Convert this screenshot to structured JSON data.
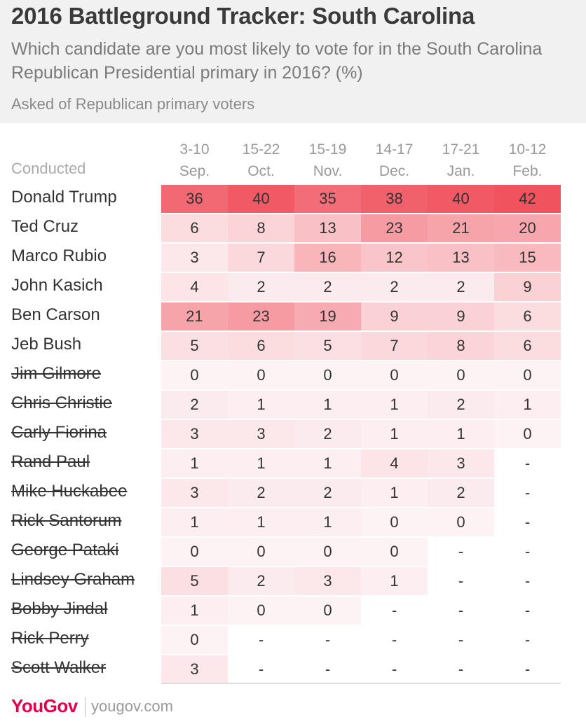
{
  "header": {
    "title": "2016 Battleground Tracker: South Carolina",
    "subtitle": "Which candidate are you most likely to vote for in the South Carolina Republican Presidential primary in 2016? (%)",
    "note": "Asked of Republican primary voters"
  },
  "table": {
    "conducted_label": "Conducted",
    "columns": [
      {
        "dates": "3-10",
        "month": "Sep."
      },
      {
        "dates": "15-22",
        "month": "Oct."
      },
      {
        "dates": "15-19",
        "month": "Nov."
      },
      {
        "dates": "14-17",
        "month": "Dec."
      },
      {
        "dates": "17-21",
        "month": "Jan."
      },
      {
        "dates": "10-12",
        "month": "Feb."
      }
    ],
    "rows": [
      {
        "name": "Donald Trump",
        "dropped": false,
        "values": [
          36,
          40,
          35,
          38,
          40,
          42
        ]
      },
      {
        "name": "Ted Cruz",
        "dropped": false,
        "values": [
          6,
          8,
          13,
          23,
          21,
          20
        ]
      },
      {
        "name": "Marco Rubio",
        "dropped": false,
        "values": [
          3,
          7,
          16,
          12,
          13,
          15
        ]
      },
      {
        "name": "John Kasich",
        "dropped": false,
        "values": [
          4,
          2,
          2,
          2,
          2,
          9
        ]
      },
      {
        "name": "Ben Carson",
        "dropped": false,
        "values": [
          21,
          23,
          19,
          9,
          9,
          6
        ]
      },
      {
        "name": "Jeb Bush",
        "dropped": false,
        "values": [
          5,
          6,
          5,
          7,
          8,
          6
        ]
      },
      {
        "name": "Jim Gilmore",
        "dropped": true,
        "values": [
          0,
          0,
          0,
          0,
          0,
          0
        ]
      },
      {
        "name": "Chris Christie",
        "dropped": true,
        "values": [
          2,
          1,
          1,
          1,
          2,
          1
        ]
      },
      {
        "name": "Carly Fiorina",
        "dropped": true,
        "values": [
          3,
          3,
          2,
          1,
          1,
          0
        ]
      },
      {
        "name": "Rand Paul",
        "dropped": true,
        "values": [
          1,
          1,
          1,
          4,
          3,
          null
        ]
      },
      {
        "name": "Mike Huckabee",
        "dropped": true,
        "values": [
          3,
          2,
          2,
          1,
          2,
          null
        ]
      },
      {
        "name": "Rick Santorum",
        "dropped": true,
        "values": [
          1,
          1,
          1,
          0,
          0,
          null
        ]
      },
      {
        "name": "George Pataki",
        "dropped": true,
        "values": [
          0,
          0,
          0,
          0,
          null,
          null
        ]
      },
      {
        "name": "Lindsey Graham",
        "dropped": true,
        "values": [
          5,
          2,
          3,
          1,
          null,
          null
        ]
      },
      {
        "name": "Bobby Jindal",
        "dropped": true,
        "values": [
          1,
          0,
          0,
          null,
          null,
          null
        ]
      },
      {
        "name": "Rick Perry",
        "dropped": true,
        "values": [
          0,
          null,
          null,
          null,
          null,
          null
        ]
      },
      {
        "name": "Scott Walker",
        "dropped": true,
        "values": [
          3,
          null,
          null,
          null,
          null,
          null
        ]
      }
    ],
    "missing_text": "-"
  },
  "chart_data": {
    "type": "heatmap",
    "title": "2016 Battleground Tracker: South Carolina",
    "categories": [
      "3-10 Sep.",
      "15-22 Oct.",
      "15-19 Nov.",
      "14-17 Dec.",
      "17-21 Jan.",
      "10-12 Feb."
    ],
    "series": [
      {
        "name": "Donald Trump",
        "values": [
          36,
          40,
          35,
          38,
          40,
          42
        ]
      },
      {
        "name": "Ted Cruz",
        "values": [
          6,
          8,
          13,
          23,
          21,
          20
        ]
      },
      {
        "name": "Marco Rubio",
        "values": [
          3,
          7,
          16,
          12,
          13,
          15
        ]
      },
      {
        "name": "John Kasich",
        "values": [
          4,
          2,
          2,
          2,
          2,
          9
        ]
      },
      {
        "name": "Ben Carson",
        "values": [
          21,
          23,
          19,
          9,
          9,
          6
        ]
      },
      {
        "name": "Jeb Bush",
        "values": [
          5,
          6,
          5,
          7,
          8,
          6
        ]
      },
      {
        "name": "Jim Gilmore",
        "values": [
          0,
          0,
          0,
          0,
          0,
          0
        ]
      },
      {
        "name": "Chris Christie",
        "values": [
          2,
          1,
          1,
          1,
          2,
          1
        ]
      },
      {
        "name": "Carly Fiorina",
        "values": [
          3,
          3,
          2,
          1,
          1,
          0
        ]
      },
      {
        "name": "Rand Paul",
        "values": [
          1,
          1,
          1,
          4,
          3,
          null
        ]
      },
      {
        "name": "Mike Huckabee",
        "values": [
          3,
          2,
          2,
          1,
          2,
          null
        ]
      },
      {
        "name": "Rick Santorum",
        "values": [
          1,
          1,
          1,
          0,
          0,
          null
        ]
      },
      {
        "name": "George Pataki",
        "values": [
          0,
          0,
          0,
          0,
          null,
          null
        ]
      },
      {
        "name": "Lindsey Graham",
        "values": [
          5,
          2,
          3,
          1,
          null,
          null
        ]
      },
      {
        "name": "Bobby Jindal",
        "values": [
          1,
          0,
          0,
          null,
          null,
          null
        ]
      },
      {
        "name": "Rick Perry",
        "values": [
          0,
          null,
          null,
          null,
          null,
          null
        ]
      },
      {
        "name": "Scott Walker",
        "values": [
          3,
          null,
          null,
          null,
          null,
          null
        ]
      }
    ],
    "colors": {
      "high": "#f0525e",
      "low": "#fdf3f5"
    }
  },
  "footer": {
    "logo": "YouGov",
    "site": "yougov.com"
  }
}
